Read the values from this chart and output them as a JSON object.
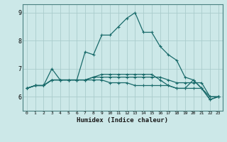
{
  "xlabel": "Humidex (Indice chaleur)",
  "background_color": "#cce8e8",
  "grid_color": "#aacccc",
  "line_color": "#1a6b6b",
  "x_values": [
    0,
    1,
    2,
    3,
    4,
    5,
    6,
    7,
    8,
    9,
    10,
    11,
    12,
    13,
    14,
    15,
    16,
    17,
    18,
    19,
    20,
    21,
    22,
    23
  ],
  "series": [
    [
      6.3,
      6.4,
      6.4,
      7.0,
      6.6,
      6.6,
      6.6,
      7.6,
      7.5,
      8.2,
      8.2,
      8.5,
      8.8,
      9.0,
      8.3,
      8.3,
      7.8,
      7.5,
      7.3,
      6.7,
      6.6,
      6.3,
      5.9,
      6.0
    ],
    [
      6.3,
      6.4,
      6.4,
      6.6,
      6.6,
      6.6,
      6.6,
      6.6,
      6.6,
      6.6,
      6.5,
      6.5,
      6.5,
      6.4,
      6.4,
      6.4,
      6.4,
      6.4,
      6.3,
      6.3,
      6.3,
      6.3,
      6.0,
      6.0
    ],
    [
      6.3,
      6.4,
      6.4,
      6.6,
      6.6,
      6.6,
      6.6,
      6.6,
      6.7,
      6.7,
      6.7,
      6.7,
      6.7,
      6.7,
      6.7,
      6.7,
      6.7,
      6.6,
      6.5,
      6.5,
      6.5,
      6.5,
      6.0,
      6.0
    ],
    [
      6.3,
      6.4,
      6.4,
      6.6,
      6.6,
      6.6,
      6.6,
      6.6,
      6.7,
      6.8,
      6.8,
      6.8,
      6.8,
      6.8,
      6.8,
      6.8,
      6.6,
      6.4,
      6.3,
      6.3,
      6.6,
      6.3,
      5.9,
      6.0
    ]
  ],
  "ylim": [
    5.5,
    9.3
  ],
  "yticks": [
    6,
    7,
    8,
    9
  ],
  "xlim": [
    -0.5,
    23.5
  ],
  "marker": "+",
  "markersize": 3,
  "linewidth": 0.9
}
